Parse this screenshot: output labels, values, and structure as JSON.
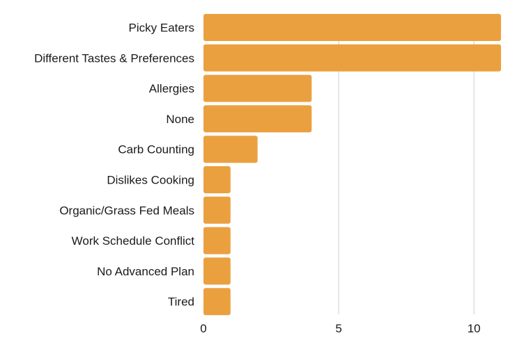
{
  "chart_data": {
    "type": "bar",
    "orientation": "horizontal",
    "title": "",
    "xlabel": "",
    "ylabel": "",
    "categories": [
      "Picky Eaters",
      "Different Tastes & Preferences",
      "Allergies",
      "None",
      "Carb Counting",
      "Dislikes Cooking",
      "Organic/Grass Fed Meals",
      "Work Schedule Conflict",
      "No Advanced Plan",
      "Tired"
    ],
    "values": [
      11,
      11,
      4,
      4,
      2,
      1,
      1,
      1,
      1,
      1
    ],
    "xlim": [
      0,
      11
    ],
    "xticks": [
      0,
      5,
      10
    ],
    "grid": true,
    "legend": "none",
    "colors": {
      "bar": "#EBA040",
      "grid": "#cfcfcf",
      "text": "#1a1a1a"
    }
  }
}
